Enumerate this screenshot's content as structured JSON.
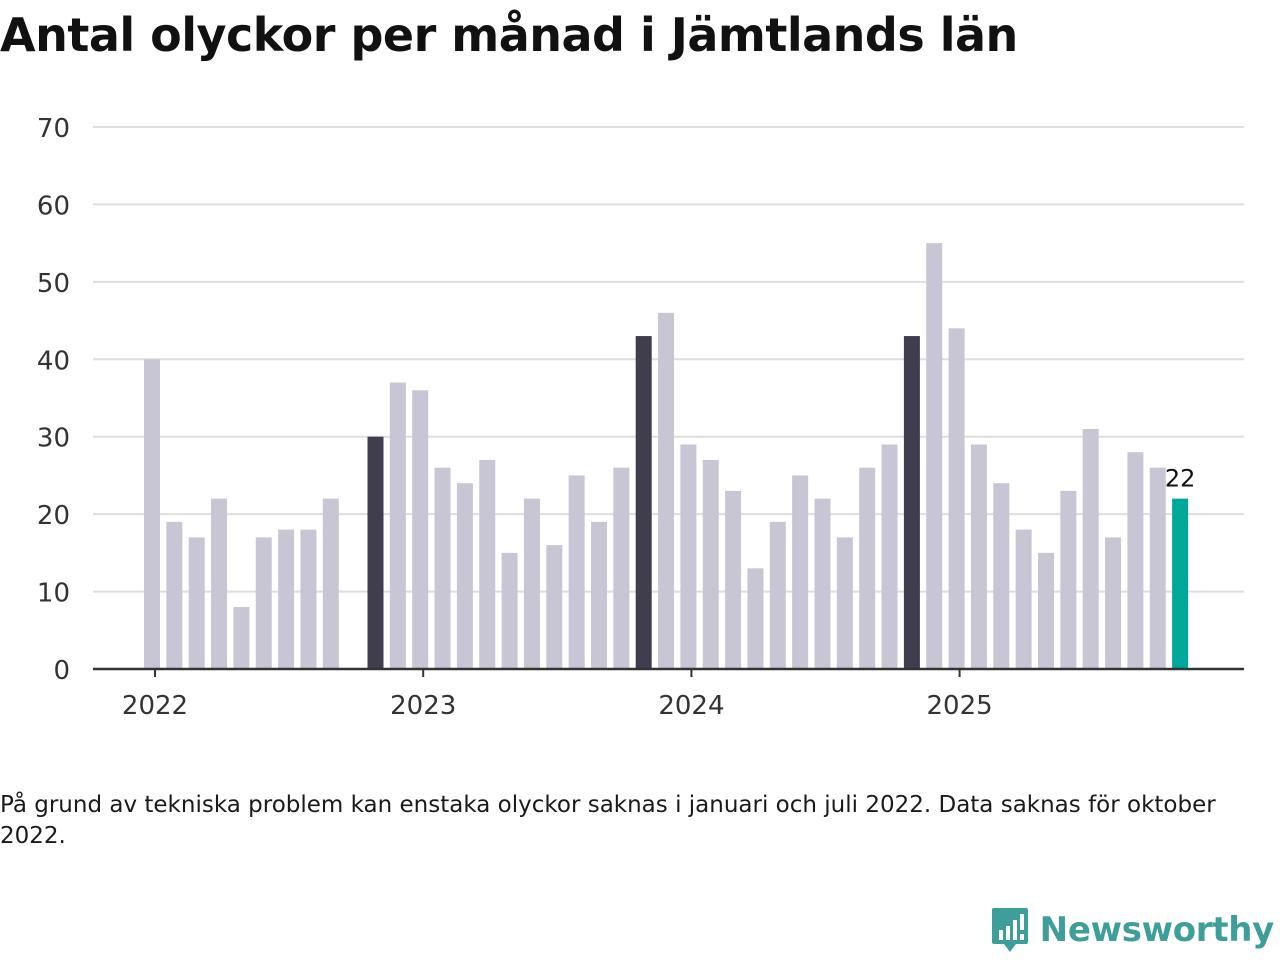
{
  "title": "Antal olyckor per månad i Jämtlands län",
  "note": "På grund av tekniska problem kan enstaka olyckor saknas i januari och juli 2022. Data saknas för oktober 2022.",
  "brand": {
    "name": "Newsworthy",
    "color": "#3d9e9a"
  },
  "colors": {
    "regular": "#c8c6d4",
    "january": "#3f3d4e",
    "latest": "#00a89b",
    "grid": "#dedede",
    "axis": "#333333"
  },
  "chart_data": {
    "type": "bar",
    "title": "Antal olyckor per månad i Jämtlands län",
    "xlabel": "",
    "ylabel": "",
    "ylim": [
      0,
      70
    ],
    "yticks": [
      0,
      10,
      20,
      30,
      40,
      50,
      60,
      70
    ],
    "year_labels": [
      "2022",
      "2023",
      "2024",
      "2025"
    ],
    "categories": [
      "2022-01",
      "2022-02",
      "2022-03",
      "2022-04",
      "2022-05",
      "2022-06",
      "2022-07",
      "2022-08",
      "2022-09",
      "2022-10",
      "2022-11",
      "2022-12",
      "2023-01",
      "2023-02",
      "2023-03",
      "2023-04",
      "2023-05",
      "2023-06",
      "2023-07",
      "2023-08",
      "2023-09",
      "2023-10",
      "2023-11",
      "2023-12",
      "2024-01",
      "2024-02",
      "2024-03",
      "2024-04",
      "2024-05",
      "2024-06",
      "2024-07",
      "2024-08",
      "2024-09",
      "2024-10",
      "2024-11",
      "2024-12",
      "2025-01",
      "2025-02",
      "2025-03",
      "2025-04",
      "2025-05",
      "2025-06",
      "2025-07",
      "2025-08",
      "2025-09",
      "2025-10",
      "2025-11",
      "2025-12"
    ],
    "values": [
      40,
      19,
      17,
      22,
      8,
      17,
      18,
      18,
      22,
      null,
      30,
      37,
      36,
      26,
      24,
      27,
      15,
      22,
      16,
      25,
      19,
      26,
      43,
      46,
      29,
      27,
      23,
      13,
      19,
      25,
      22,
      17,
      26,
      29,
      43,
      55,
      44,
      29,
      24,
      18,
      15,
      23,
      31,
      17,
      28,
      26,
      22,
      null
    ],
    "series_roles": [
      "regular",
      "regular",
      "regular",
      "regular",
      "regular",
      "regular",
      "regular",
      "regular",
      "regular",
      "missing",
      "january",
      "regular",
      "regular",
      "regular",
      "regular",
      "regular",
      "regular",
      "regular",
      "regular",
      "regular",
      "regular",
      "regular",
      "january",
      "regular",
      "regular",
      "regular",
      "regular",
      "regular",
      "regular",
      "regular",
      "regular",
      "regular",
      "regular",
      "regular",
      "january",
      "regular",
      "regular",
      "regular",
      "regular",
      "regular",
      "regular",
      "regular",
      "regular",
      "regular",
      "regular",
      "regular",
      "latest",
      "missing"
    ],
    "highlight_label": "22"
  }
}
